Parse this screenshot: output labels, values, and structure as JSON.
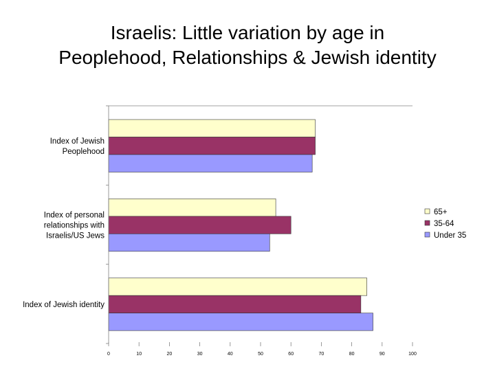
{
  "title": {
    "line1": "Israelis: Little variation by age in",
    "line2": "Peoplehood, Relationships & Jewish identity"
  },
  "chart_data": {
    "type": "bar",
    "orientation": "horizontal",
    "categories": [
      [
        "Index of Jewish",
        "Peoplehood"
      ],
      [
        "Index of personal",
        "relationships with",
        "Israelis/US Jews"
      ],
      [
        "Index of Jewish identity"
      ]
    ],
    "series": [
      {
        "name": "65+",
        "color": "#ffffcc",
        "values": [
          68,
          55,
          85
        ]
      },
      {
        "name": "35-64",
        "color": "#993366",
        "values": [
          68,
          60,
          83
        ]
      },
      {
        "name": "Under 35",
        "color": "#9999ff",
        "values": [
          67,
          53,
          87
        ]
      }
    ],
    "xlim": [
      0,
      100
    ],
    "xticks": [
      "0",
      "10",
      "20",
      "30",
      "40",
      "50",
      "60",
      "70",
      "80",
      "90",
      "100"
    ],
    "legend_position": "right",
    "grid": false
  }
}
